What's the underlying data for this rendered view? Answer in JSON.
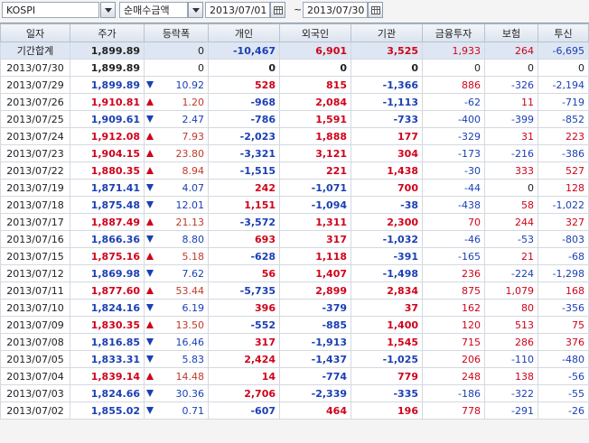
{
  "toolbar": {
    "market": "KOSPI",
    "metric": "순매수금액",
    "date_from": "2013/07/01",
    "date_sep": "~",
    "date_to": "2013/07/30"
  },
  "columns": [
    "일자",
    "주가",
    "등락폭",
    "개인",
    "외국인",
    "기관",
    "금융투자",
    "보험",
    "투신"
  ],
  "colors": {
    "up": "#d0021b",
    "down": "#1a3fb5",
    "header_bg": "#dbe3ee",
    "summary_bg": "#dde6f2"
  },
  "rows": [
    {
      "date": "기간합계",
      "price": "1,899.89",
      "dir": "flat",
      "chg": "0",
      "ind": "-10,467",
      "for": "6,901",
      "inst": "3,525",
      "fin": "1,933",
      "ins": "264",
      "trust": "-6,695"
    },
    {
      "date": "2013/07/30",
      "price": "1,899.89",
      "dir": "flat",
      "chg": "0",
      "ind": "0",
      "for": "0",
      "inst": "0",
      "fin": "0",
      "ins": "0",
      "trust": "0"
    },
    {
      "date": "2013/07/29",
      "price": "1,899.89",
      "dir": "down",
      "chg": "10.92",
      "ind": "528",
      "for": "815",
      "inst": "-1,366",
      "fin": "886",
      "ins": "-326",
      "trust": "-2,194"
    },
    {
      "date": "2013/07/26",
      "price": "1,910.81",
      "dir": "up",
      "chg": "1.20",
      "ind": "-968",
      "for": "2,084",
      "inst": "-1,113",
      "fin": "-62",
      "ins": "11",
      "trust": "-719"
    },
    {
      "date": "2013/07/25",
      "price": "1,909.61",
      "dir": "down",
      "chg": "2.47",
      "ind": "-786",
      "for": "1,591",
      "inst": "-733",
      "fin": "-400",
      "ins": "-399",
      "trust": "-852"
    },
    {
      "date": "2013/07/24",
      "price": "1,912.08",
      "dir": "up",
      "chg": "7.93",
      "ind": "-2,023",
      "for": "1,888",
      "inst": "177",
      "fin": "-329",
      "ins": "31",
      "trust": "223"
    },
    {
      "date": "2013/07/23",
      "price": "1,904.15",
      "dir": "up",
      "chg": "23.80",
      "ind": "-3,321",
      "for": "3,121",
      "inst": "304",
      "fin": "-173",
      "ins": "-216",
      "trust": "-386"
    },
    {
      "date": "2013/07/22",
      "price": "1,880.35",
      "dir": "up",
      "chg": "8.94",
      "ind": "-1,515",
      "for": "221",
      "inst": "1,438",
      "fin": "-30",
      "ins": "333",
      "trust": "527"
    },
    {
      "date": "2013/07/19",
      "price": "1,871.41",
      "dir": "down",
      "chg": "4.07",
      "ind": "242",
      "for": "-1,071",
      "inst": "700",
      "fin": "-44",
      "ins": "0",
      "trust": "128"
    },
    {
      "date": "2013/07/18",
      "price": "1,875.48",
      "dir": "down",
      "chg": "12.01",
      "ind": "1,151",
      "for": "-1,094",
      "inst": "-38",
      "fin": "-438",
      "ins": "58",
      "trust": "-1,022"
    },
    {
      "date": "2013/07/17",
      "price": "1,887.49",
      "dir": "up",
      "chg": "21.13",
      "ind": "-3,572",
      "for": "1,311",
      "inst": "2,300",
      "fin": "70",
      "ins": "244",
      "trust": "327"
    },
    {
      "date": "2013/07/16",
      "price": "1,866.36",
      "dir": "down",
      "chg": "8.80",
      "ind": "693",
      "for": "317",
      "inst": "-1,032",
      "fin": "-46",
      "ins": "-53",
      "trust": "-803"
    },
    {
      "date": "2013/07/15",
      "price": "1,875.16",
      "dir": "up",
      "chg": "5.18",
      "ind": "-628",
      "for": "1,118",
      "inst": "-391",
      "fin": "-165",
      "ins": "21",
      "trust": "-68"
    },
    {
      "date": "2013/07/12",
      "price": "1,869.98",
      "dir": "down",
      "chg": "7.62",
      "ind": "56",
      "for": "1,407",
      "inst": "-1,498",
      "fin": "236",
      "ins": "-224",
      "trust": "-1,298"
    },
    {
      "date": "2013/07/11",
      "price": "1,877.60",
      "dir": "up",
      "chg": "53.44",
      "ind": "-5,735",
      "for": "2,899",
      "inst": "2,834",
      "fin": "875",
      "ins": "1,079",
      "trust": "168"
    },
    {
      "date": "2013/07/10",
      "price": "1,824.16",
      "dir": "down",
      "chg": "6.19",
      "ind": "396",
      "for": "-379",
      "inst": "37",
      "fin": "162",
      "ins": "80",
      "trust": "-356"
    },
    {
      "date": "2013/07/09",
      "price": "1,830.35",
      "dir": "up",
      "chg": "13.50",
      "ind": "-552",
      "for": "-885",
      "inst": "1,400",
      "fin": "120",
      "ins": "513",
      "trust": "75"
    },
    {
      "date": "2013/07/08",
      "price": "1,816.85",
      "dir": "down",
      "chg": "16.46",
      "ind": "317",
      "for": "-1,913",
      "inst": "1,545",
      "fin": "715",
      "ins": "286",
      "trust": "376"
    },
    {
      "date": "2013/07/05",
      "price": "1,833.31",
      "dir": "down",
      "chg": "5.83",
      "ind": "2,424",
      "for": "-1,437",
      "inst": "-1,025",
      "fin": "206",
      "ins": "-110",
      "trust": "-480"
    },
    {
      "date": "2013/07/04",
      "price": "1,839.14",
      "dir": "up",
      "chg": "14.48",
      "ind": "14",
      "for": "-774",
      "inst": "779",
      "fin": "248",
      "ins": "138",
      "trust": "-56"
    },
    {
      "date": "2013/07/03",
      "price": "1,824.66",
      "dir": "down",
      "chg": "30.36",
      "ind": "2,706",
      "for": "-2,339",
      "inst": "-335",
      "fin": "-186",
      "ins": "-322",
      "trust": "-55"
    },
    {
      "date": "2013/07/02",
      "price": "1,855.02",
      "dir": "down",
      "chg": "0.71",
      "ind": "-607",
      "for": "464",
      "inst": "196",
      "fin": "778",
      "ins": "-291",
      "trust": "-26"
    }
  ]
}
